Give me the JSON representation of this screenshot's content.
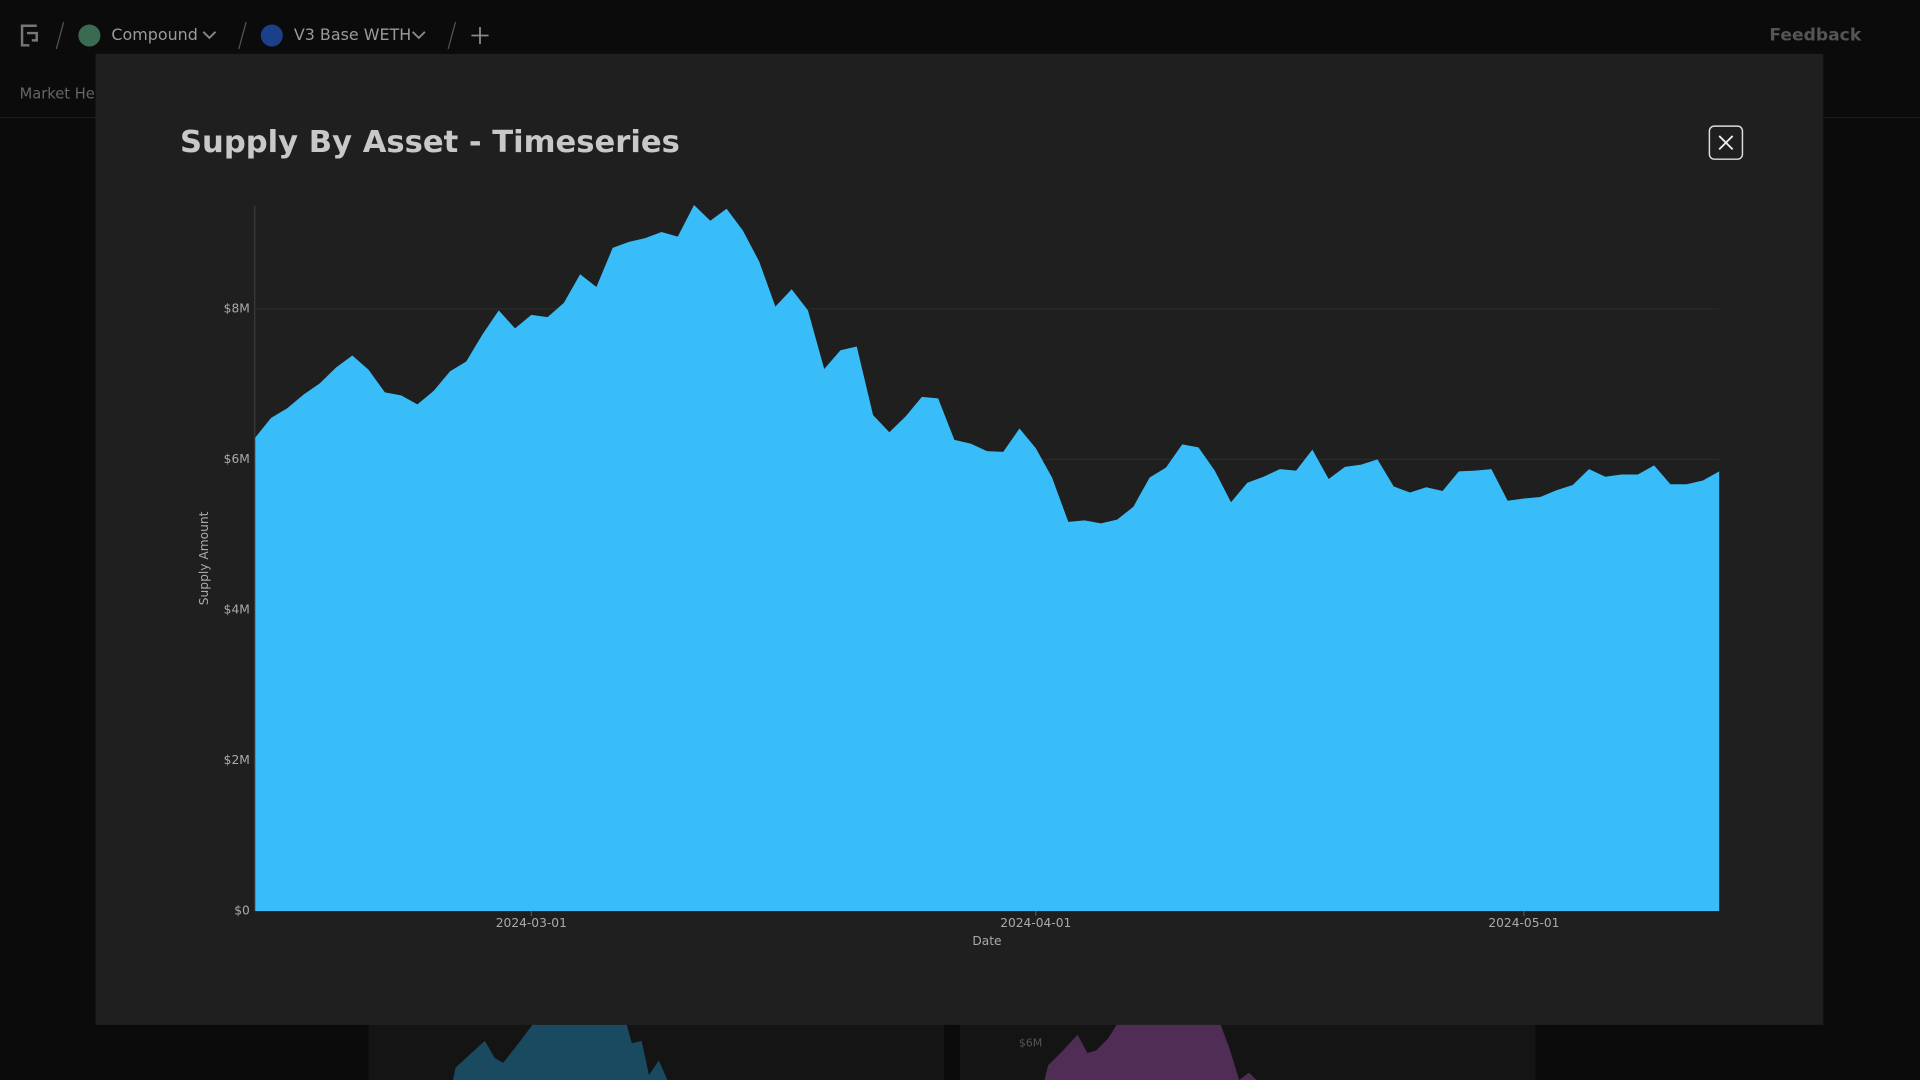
{
  "background": {
    "nav": [
      "Compound",
      "V3 Base WETH"
    ],
    "feedback": "Feedback",
    "tab": "Market Hea",
    "card_label": "$6M"
  },
  "chart_data": {
    "type": "area",
    "title": "Supply By Asset - Timeseries",
    "color": "#38bdf8",
    "x_label": "Date",
    "y_label": "Supply Amount",
    "x": [
      "2024-02-13",
      "2024-02-14",
      "2024-02-15",
      "2024-02-16",
      "2024-02-17",
      "2024-02-18",
      "2024-02-19",
      "2024-02-20",
      "2024-02-21",
      "2024-02-22",
      "2024-02-23",
      "2024-02-24",
      "2024-02-25",
      "2024-02-26",
      "2024-02-27",
      "2024-02-28",
      "2024-02-29",
      "2024-03-01",
      "2024-03-02",
      "2024-03-03",
      "2024-03-04",
      "2024-03-05",
      "2024-03-06",
      "2024-03-07",
      "2024-03-08",
      "2024-03-09",
      "2024-03-10",
      "2024-03-11",
      "2024-03-12",
      "2024-03-13",
      "2024-03-14",
      "2024-03-15",
      "2024-03-16",
      "2024-03-17",
      "2024-03-18",
      "2024-03-19",
      "2024-03-20",
      "2024-03-21",
      "2024-03-22",
      "2024-03-23",
      "2024-03-24",
      "2024-03-25",
      "2024-03-26",
      "2024-03-27",
      "2024-03-28",
      "2024-03-29",
      "2024-03-30",
      "2024-03-31",
      "2024-04-01",
      "2024-04-02",
      "2024-04-03",
      "2024-04-04",
      "2024-04-05",
      "2024-04-06",
      "2024-04-07",
      "2024-04-08",
      "2024-04-09",
      "2024-04-10",
      "2024-04-11",
      "2024-04-12",
      "2024-04-13",
      "2024-04-14",
      "2024-04-15",
      "2024-04-16",
      "2024-04-17",
      "2024-04-18",
      "2024-04-19",
      "2024-04-20",
      "2024-04-21",
      "2024-04-22",
      "2024-04-23",
      "2024-04-24",
      "2024-04-25",
      "2024-04-26",
      "2024-04-27",
      "2024-04-28",
      "2024-04-29",
      "2024-04-30",
      "2024-05-01",
      "2024-05-02",
      "2024-05-03",
      "2024-05-04",
      "2024-05-05",
      "2024-05-06",
      "2024-05-07",
      "2024-05-08",
      "2024-05-09",
      "2024-05-10",
      "2024-05-11",
      "2024-05-12",
      "2024-05-13"
    ],
    "values": [
      6280000,
      6550000,
      6680000,
      6860000,
      7010000,
      7220000,
      7380000,
      7190000,
      6890000,
      6850000,
      6730000,
      6910000,
      7170000,
      7300000,
      7660000,
      7980000,
      7740000,
      7920000,
      7890000,
      8080000,
      8460000,
      8290000,
      8810000,
      8890000,
      8940000,
      9020000,
      8960000,
      9380000,
      9170000,
      9330000,
      9040000,
      8630000,
      8030000,
      8260000,
      7980000,
      7200000,
      7450000,
      7500000,
      6590000,
      6360000,
      6570000,
      6830000,
      6810000,
      6260000,
      6210000,
      6110000,
      6100000,
      6410000,
      6150000,
      5760000,
      5170000,
      5190000,
      5150000,
      5200000,
      5370000,
      5760000,
      5890000,
      6200000,
      6160000,
      5850000,
      5430000,
      5690000,
      5770000,
      5870000,
      5850000,
      6130000,
      5740000,
      5900000,
      5930000,
      6000000,
      5640000,
      5560000,
      5630000,
      5580000,
      5840000,
      5850000,
      5870000,
      5450000,
      5480000,
      5500000,
      5590000,
      5660000,
      5870000,
      5770000,
      5800000,
      5800000,
      5920000,
      5670000,
      5670000,
      5720000,
      5840000
    ],
    "xlim": [
      "2024-02-13",
      "2024-05-13"
    ],
    "xticks": [
      "2024-03-01",
      "2024-04-01",
      "2024-05-01"
    ],
    "ylim": [
      0,
      9370000
    ],
    "yticks": [
      {
        "value": 0,
        "label": "$0"
      },
      {
        "value": 2000000,
        "label": "$2M"
      },
      {
        "value": 4000000,
        "label": "$4M"
      },
      {
        "value": 6000000,
        "label": "$6M"
      },
      {
        "value": 8000000,
        "label": "$8M"
      }
    ],
    "grid": true
  }
}
